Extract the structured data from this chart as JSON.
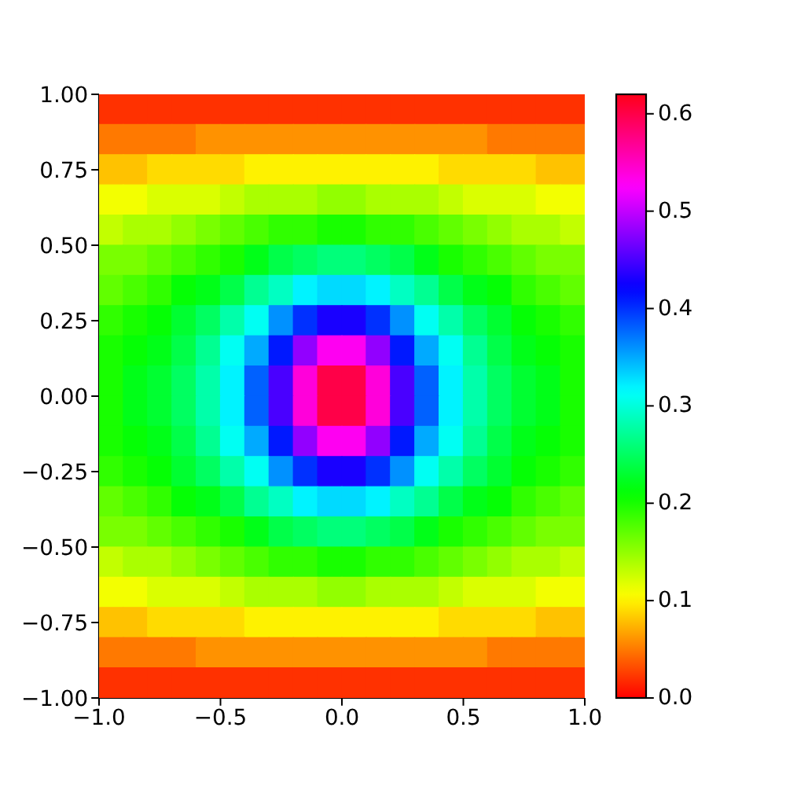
{
  "chart_data": {
    "type": "heatmap",
    "xlim": [
      -1,
      1
    ],
    "ylim": [
      -1,
      1
    ],
    "xticks": [
      {
        "value": -1,
        "label": "−1.0"
      },
      {
        "value": -0.5,
        "label": "−0.5"
      },
      {
        "value": 0,
        "label": "0.0"
      },
      0.5,
      {
        "value": 1,
        "label": "1.0"
      }
    ],
    "yticks": [
      {
        "value": -1,
        "label": "−1.00"
      },
      {
        "value": -0.75,
        "label": "−0.75"
      },
      {
        "value": -0.5,
        "label": "−0.50"
      },
      {
        "value": -0.25,
        "label": "−0.25"
      },
      {
        "value": 0,
        "label": "0.00"
      },
      0.25,
      {
        "value": 0.5,
        "label": "0.50"
      },
      0.75,
      {
        "value": 1,
        "label": "1.00"
      }
    ],
    "clim": [
      0,
      0.62
    ],
    "cticks": [
      {
        "value": 0,
        "label": "0.0"
      },
      0.1,
      0.2,
      0.3,
      0.4,
      0.5,
      0.6
    ],
    "cells": [
      [
        0.02,
        0.02,
        0.02,
        0.02,
        0.02,
        0.02,
        0.02,
        0.02,
        0.02,
        0.02,
        0.02,
        0.02,
        0.02,
        0.02,
        0.02,
        0.02,
        0.02,
        0.02,
        0.02,
        0.02
      ],
      [
        0.05,
        0.05,
        0.05,
        0.05,
        0.06,
        0.06,
        0.06,
        0.06,
        0.06,
        0.06,
        0.06,
        0.06,
        0.06,
        0.06,
        0.06,
        0.06,
        0.05,
        0.05,
        0.05,
        0.05
      ],
      [
        0.08,
        0.08,
        0.09,
        0.09,
        0.09,
        0.09,
        0.1,
        0.1,
        0.1,
        0.1,
        0.1,
        0.1,
        0.1,
        0.1,
        0.09,
        0.09,
        0.09,
        0.09,
        0.08,
        0.08
      ],
      [
        0.11,
        0.11,
        0.12,
        0.12,
        0.12,
        0.13,
        0.14,
        0.14,
        0.14,
        0.15,
        0.15,
        0.14,
        0.14,
        0.14,
        0.13,
        0.12,
        0.12,
        0.12,
        0.11,
        0.11
      ],
      [
        0.13,
        0.14,
        0.14,
        0.15,
        0.16,
        0.17,
        0.18,
        0.19,
        0.19,
        0.2,
        0.2,
        0.19,
        0.19,
        0.18,
        0.17,
        0.16,
        0.15,
        0.14,
        0.14,
        0.13
      ],
      [
        0.16,
        0.16,
        0.17,
        0.18,
        0.19,
        0.2,
        0.22,
        0.24,
        0.25,
        0.26,
        0.26,
        0.25,
        0.24,
        0.22,
        0.2,
        0.19,
        0.18,
        0.17,
        0.16,
        0.16
      ],
      [
        0.17,
        0.18,
        0.19,
        0.21,
        0.22,
        0.24,
        0.27,
        0.29,
        0.32,
        0.33,
        0.33,
        0.32,
        0.29,
        0.27,
        0.24,
        0.22,
        0.21,
        0.19,
        0.18,
        0.17
      ],
      [
        0.19,
        0.2,
        0.21,
        0.23,
        0.25,
        0.28,
        0.31,
        0.36,
        0.4,
        0.43,
        0.43,
        0.4,
        0.36,
        0.31,
        0.28,
        0.25,
        0.23,
        0.21,
        0.2,
        0.19
      ],
      [
        0.2,
        0.21,
        0.22,
        0.24,
        0.27,
        0.31,
        0.35,
        0.41,
        0.48,
        0.53,
        0.53,
        0.48,
        0.41,
        0.35,
        0.31,
        0.27,
        0.24,
        0.22,
        0.21,
        0.2
      ],
      [
        0.2,
        0.22,
        0.23,
        0.25,
        0.28,
        0.32,
        0.38,
        0.45,
        0.54,
        0.6,
        0.6,
        0.54,
        0.45,
        0.38,
        0.32,
        0.28,
        0.25,
        0.23,
        0.22,
        0.2
      ],
      [
        0.2,
        0.22,
        0.23,
        0.25,
        0.28,
        0.32,
        0.38,
        0.45,
        0.54,
        0.6,
        0.6,
        0.54,
        0.45,
        0.38,
        0.32,
        0.28,
        0.25,
        0.23,
        0.22,
        0.2
      ],
      [
        0.2,
        0.21,
        0.22,
        0.24,
        0.27,
        0.31,
        0.35,
        0.41,
        0.48,
        0.53,
        0.53,
        0.48,
        0.41,
        0.35,
        0.31,
        0.27,
        0.24,
        0.22,
        0.21,
        0.2
      ],
      [
        0.19,
        0.2,
        0.21,
        0.23,
        0.25,
        0.28,
        0.31,
        0.36,
        0.4,
        0.43,
        0.43,
        0.4,
        0.36,
        0.31,
        0.28,
        0.25,
        0.23,
        0.21,
        0.2,
        0.19
      ],
      [
        0.17,
        0.18,
        0.19,
        0.21,
        0.22,
        0.24,
        0.27,
        0.29,
        0.32,
        0.33,
        0.33,
        0.32,
        0.29,
        0.27,
        0.24,
        0.22,
        0.21,
        0.19,
        0.18,
        0.17
      ],
      [
        0.16,
        0.16,
        0.17,
        0.18,
        0.19,
        0.2,
        0.22,
        0.24,
        0.25,
        0.26,
        0.26,
        0.25,
        0.24,
        0.22,
        0.2,
        0.19,
        0.18,
        0.17,
        0.16,
        0.16
      ],
      [
        0.13,
        0.14,
        0.14,
        0.15,
        0.16,
        0.17,
        0.18,
        0.19,
        0.19,
        0.2,
        0.2,
        0.19,
        0.19,
        0.18,
        0.17,
        0.16,
        0.15,
        0.14,
        0.14,
        0.13
      ],
      [
        0.11,
        0.11,
        0.12,
        0.12,
        0.12,
        0.13,
        0.14,
        0.14,
        0.14,
        0.15,
        0.15,
        0.14,
        0.14,
        0.14,
        0.13,
        0.12,
        0.12,
        0.12,
        0.11,
        0.11
      ],
      [
        0.08,
        0.08,
        0.09,
        0.09,
        0.09,
        0.09,
        0.1,
        0.1,
        0.1,
        0.1,
        0.1,
        0.1,
        0.1,
        0.1,
        0.09,
        0.09,
        0.09,
        0.09,
        0.08,
        0.08
      ],
      [
        0.05,
        0.05,
        0.05,
        0.05,
        0.06,
        0.06,
        0.06,
        0.06,
        0.06,
        0.06,
        0.06,
        0.06,
        0.06,
        0.06,
        0.06,
        0.06,
        0.05,
        0.05,
        0.05,
        0.05
      ],
      [
        0.02,
        0.02,
        0.02,
        0.02,
        0.02,
        0.02,
        0.02,
        0.02,
        0.02,
        0.02,
        0.02,
        0.02,
        0.02,
        0.02,
        0.02,
        0.02,
        0.02,
        0.02,
        0.02,
        0.02
      ]
    ]
  }
}
